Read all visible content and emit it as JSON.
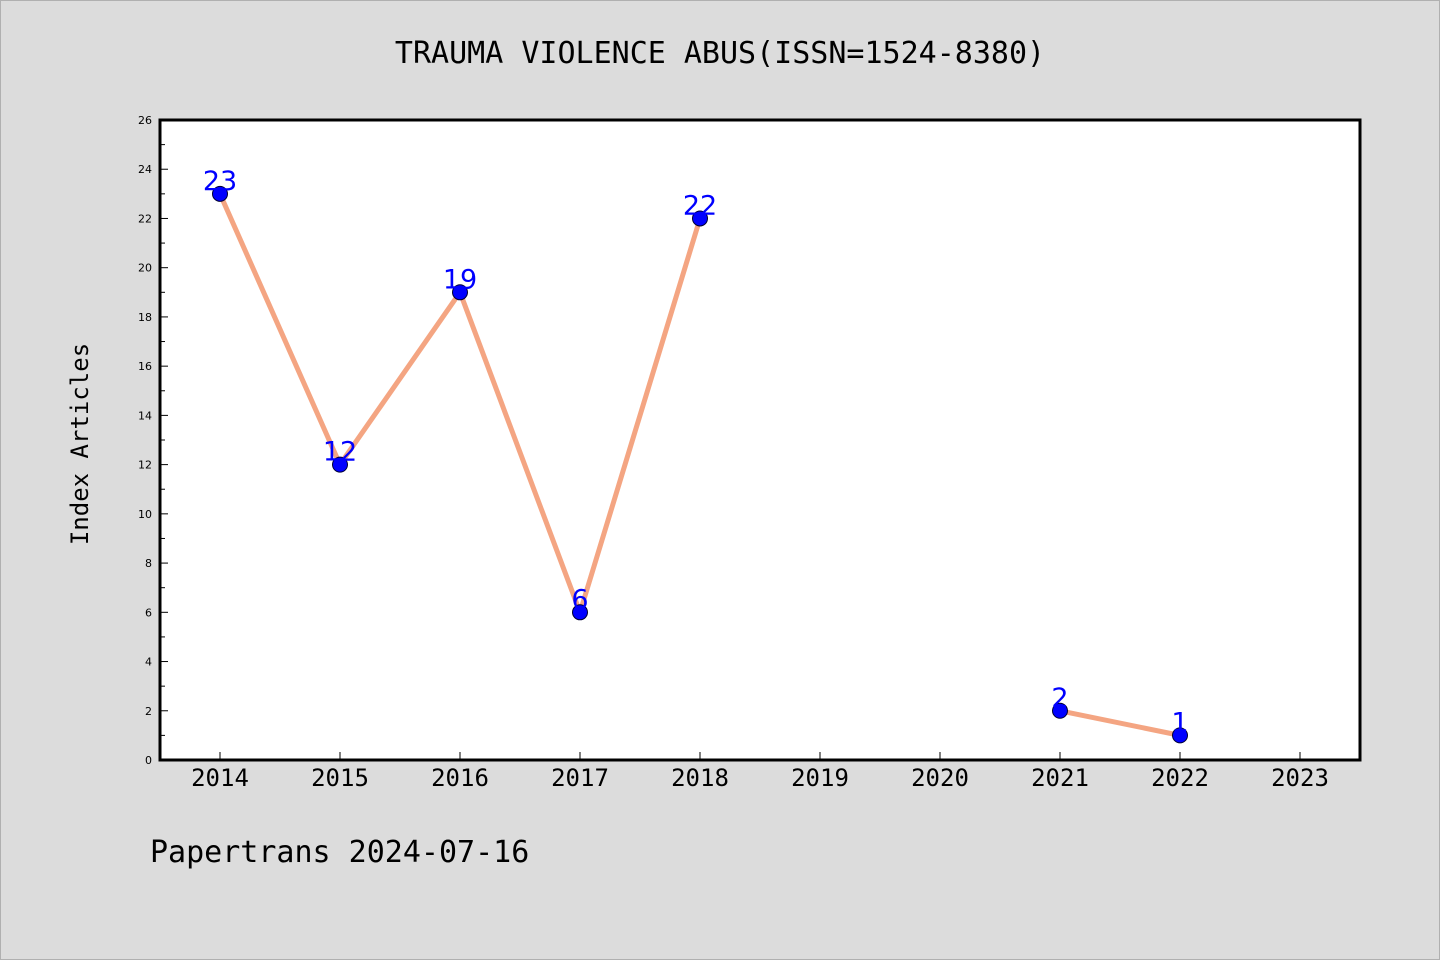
{
  "chart_data": {
    "type": "line",
    "title": "TRAUMA VIOLENCE ABUS(ISSN=1524-8380)",
    "ylabel": "Index Articles",
    "xlabel": "",
    "x": [
      "2014",
      "2015",
      "2016",
      "2017",
      "2018",
      "2019",
      "2020",
      "2021",
      "2022",
      "2023"
    ],
    "series": [
      {
        "values": [
          23,
          12,
          19,
          6,
          22,
          null,
          null,
          2,
          1,
          null
        ]
      }
    ],
    "data_labels": [
      "23",
      "12",
      "19",
      "6",
      "22",
      "",
      "",
      "2",
      "1",
      ""
    ],
    "ylim": [
      0,
      26
    ],
    "yticks": [
      "0",
      "2",
      "4",
      "6",
      "8",
      "10",
      "12",
      "14",
      "16",
      "18",
      "20",
      "22",
      "24",
      "26"
    ],
    "grid": false,
    "colors": {
      "line": "#f4a582",
      "marker": "#0000ff",
      "label": "#0000ff"
    }
  },
  "footer": "Papertrans 2024-07-16"
}
